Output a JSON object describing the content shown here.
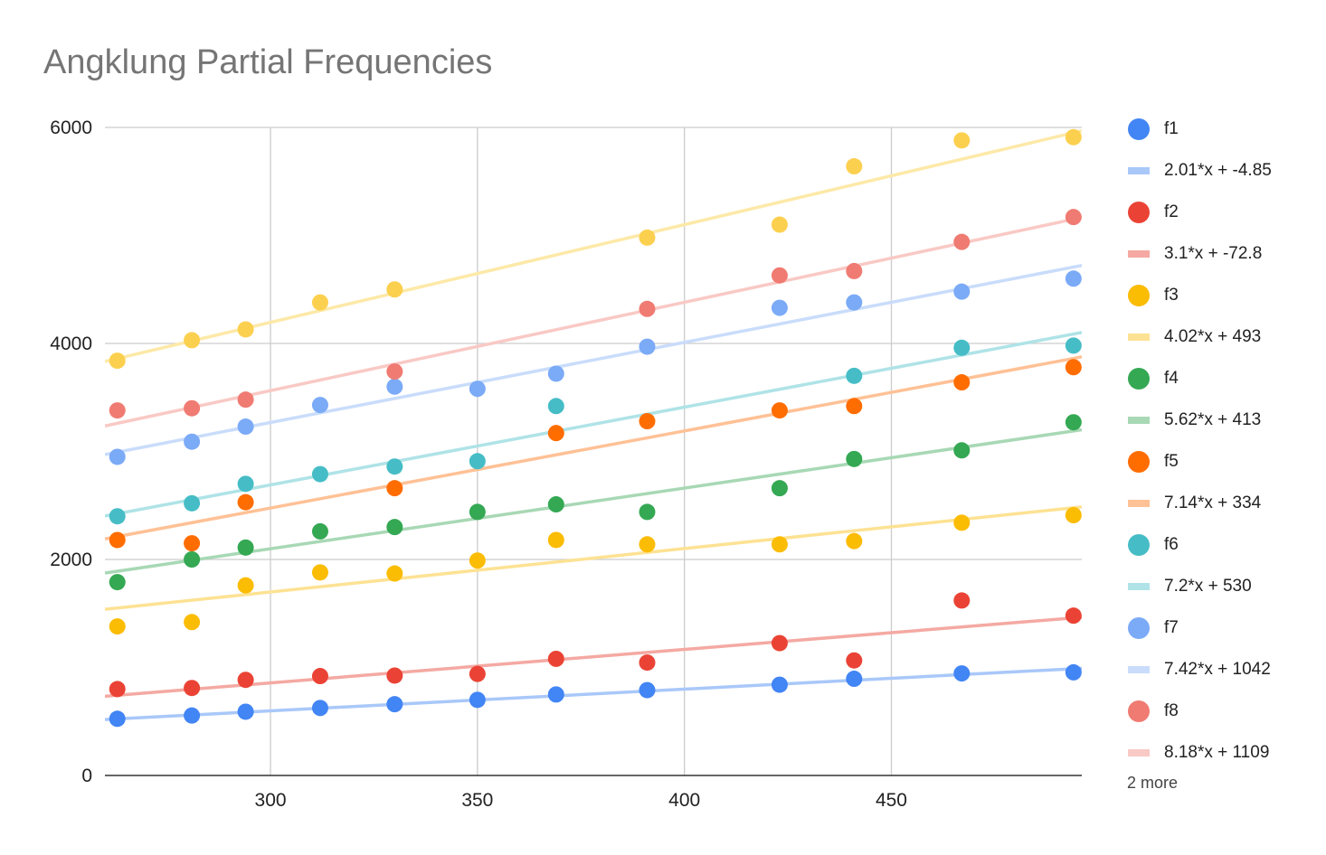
{
  "chart_data": {
    "type": "scatter",
    "title": "Angklung Partial Frequencies",
    "xlabel": "",
    "ylabel": "",
    "xlim": [
      260,
      496
    ],
    "ylim": [
      0,
      6000
    ],
    "x_ticks": [
      "300",
      "350",
      "400",
      "450"
    ],
    "y_ticks": [
      "0",
      "2000",
      "4000",
      "6000"
    ],
    "grid": true,
    "legend_position": "right",
    "legend_more": "2 more",
    "x": [
      263,
      281,
      294,
      312,
      330,
      350,
      369,
      391,
      423,
      441,
      467,
      494
    ],
    "series": [
      {
        "name": "f1",
        "color": "#4285f4",
        "values": [
          525,
          555,
          590,
          625,
          660,
          700,
          750,
          790,
          840,
          895,
          945,
          955
        ],
        "trendline": {
          "label": "2.01*x + -4.85",
          "slope": 2.01,
          "intercept": -4.85,
          "color": "#a9c8f9"
        }
      },
      {
        "name": "f2",
        "color": "#ea4335",
        "values": [
          800,
          810,
          885,
          920,
          925,
          940,
          1080,
          1045,
          1225,
          1065,
          1620,
          1480
        ],
        "trendline": {
          "label": "3.1*x + -72.8",
          "slope": 3.1,
          "intercept": -72.8,
          "color": "#f4a9a2"
        }
      },
      {
        "name": "f3",
        "color": "#fbbc04",
        "values": [
          1380,
          1420,
          1760,
          1880,
          1870,
          1990,
          2180,
          2140,
          2140,
          2170,
          2340,
          2410
        ],
        "trendline": {
          "label": "4.02*x + 493",
          "slope": 4.02,
          "intercept": 493,
          "color": "#fde293"
        }
      },
      {
        "name": "f4",
        "color": "#34a853",
        "values": [
          1790,
          2000,
          2110,
          2260,
          2300,
          2440,
          2510,
          2440,
          2660,
          2930,
          3010,
          3270
        ],
        "trendline": {
          "label": "5.62*x + 413",
          "slope": 5.62,
          "intercept": 413,
          "color": "#a8d8b5"
        }
      },
      {
        "name": "f5",
        "color": "#ff6d01",
        "values": [
          2180,
          2150,
          2530,
          null,
          2660,
          null,
          3170,
          3280,
          3380,
          3420,
          3640,
          3780
        ],
        "trendline": {
          "label": "7.14*x + 334",
          "slope": 7.14,
          "intercept": 334,
          "color": "#ffc196"
        }
      },
      {
        "name": "f6",
        "color": "#46bdc6",
        "values": [
          2400,
          2520,
          2700,
          2790,
          2860,
          2910,
          3420,
          null,
          null,
          3700,
          3960,
          3980
        ],
        "trendline": {
          "label": "7.2*x + 530",
          "slope": 7.2,
          "intercept": 530,
          "color": "#afe3e7"
        }
      },
      {
        "name": "f7",
        "color": "#7baaf7",
        "values": [
          2950,
          3090,
          3230,
          3430,
          3600,
          3580,
          3720,
          3970,
          4330,
          4380,
          4480,
          4600
        ],
        "trendline": {
          "label": "7.42*x + 1042",
          "slope": 7.42,
          "intercept": 1042,
          "color": "#c9dcfb"
        }
      },
      {
        "name": "f8",
        "color": "#f07b72",
        "values": [
          3380,
          3400,
          3480,
          null,
          3740,
          null,
          null,
          4320,
          4630,
          4670,
          4940,
          5170
        ],
        "trendline": {
          "label": "8.18*x + 1109",
          "slope": 8.18,
          "intercept": 1109,
          "color": "#f9c9c5"
        }
      },
      {
        "name": "",
        "color": "#fcd04f",
        "values": [
          3840,
          4030,
          4130,
          4380,
          4500,
          null,
          null,
          4980,
          5100,
          5640,
          5880,
          5910
        ],
        "trendline": {
          "label": "",
          "slope": 9.05,
          "intercept": 1480,
          "color": "#fde9a8"
        }
      }
    ]
  }
}
